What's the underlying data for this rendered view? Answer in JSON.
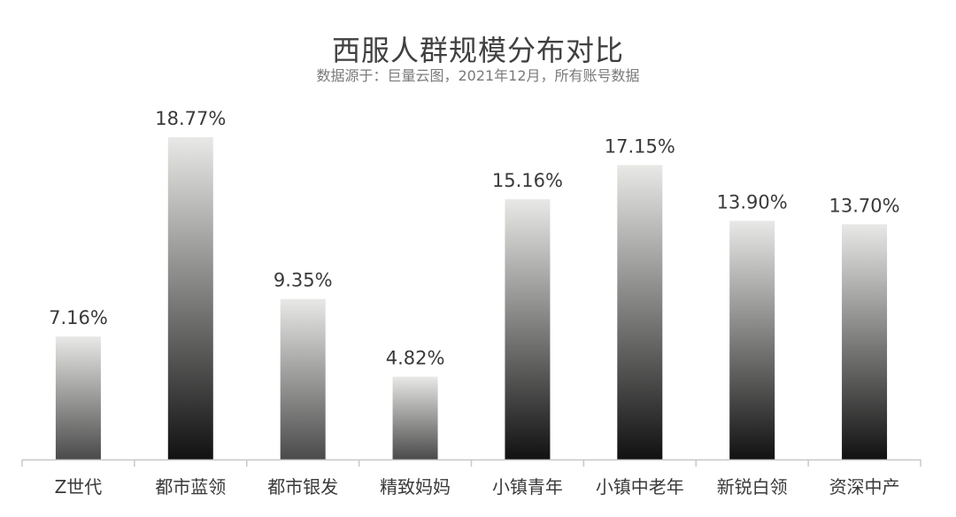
{
  "chart_data": {
    "type": "bar",
    "title": "西服人群规模分布对比",
    "subtitle": "数据源于：巨量云图，2021年12月，所有账号数据",
    "categories": [
      "Z世代",
      "都市蓝领",
      "都市银发",
      "精致妈妈",
      "小镇青年",
      "小镇中老年",
      "新锐白领",
      "资深中产"
    ],
    "values": [
      7.16,
      18.77,
      9.35,
      4.82,
      15.16,
      17.15,
      13.9,
      13.7
    ],
    "value_labels": [
      "7.16%",
      "18.77%",
      "9.35%",
      "4.82%",
      "15.16%",
      "17.15%",
      "13.90%",
      "13.70%"
    ],
    "ylim": [
      0,
      20
    ],
    "grid": false,
    "legend": "none",
    "colors": {
      "bar_light": "#e8e9e6",
      "bar_dark": "#1a1a1a",
      "axis": "#c8c8c8",
      "text": "#3a3a3a"
    }
  }
}
